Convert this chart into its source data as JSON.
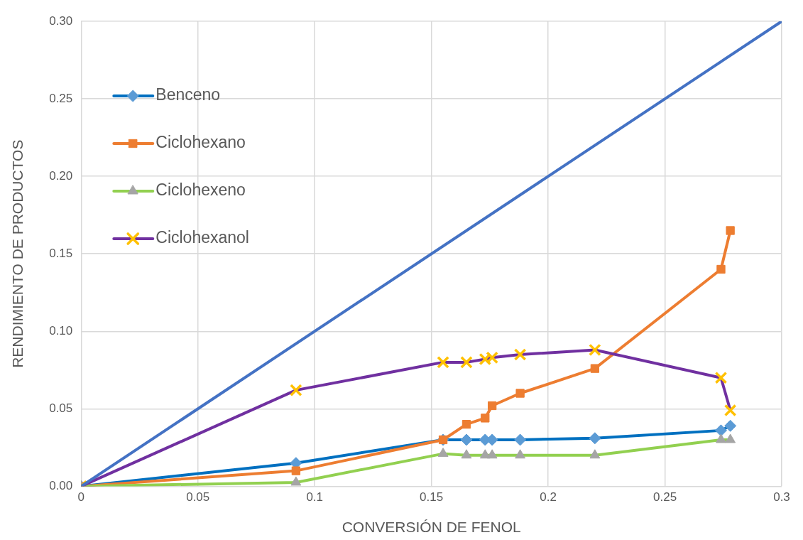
{
  "chart_data": {
    "type": "line",
    "xlabel": "CONVERSIÓN DE FENOL",
    "ylabel": "RENDIMIENTO DE PRODUCTOS",
    "xlim": [
      0,
      0.3
    ],
    "xticks": [
      0,
      0.05,
      0.1,
      0.15,
      0.2,
      0.25,
      0.3
    ],
    "ylim": [
      0,
      0.3
    ],
    "yticks": [
      {
        "value": 0,
        "label": "0.00"
      },
      {
        "value": 0.05,
        "label": "0.05"
      },
      {
        "value": 0.1,
        "label": "0.10"
      },
      {
        "value": 0.15,
        "label": "0.15"
      },
      {
        "value": 0.2,
        "label": "0.20"
      },
      {
        "value": 0.25,
        "label": "0.25"
      },
      {
        "value": 0.3,
        "label": "0.30"
      }
    ],
    "grid": true,
    "legend": "top left",
    "x": [
      0,
      0.092,
      0.155,
      0.165,
      0.173,
      0.176,
      0.188,
      0.22,
      0.274,
      0.278
    ],
    "series": [
      {
        "name": "Benceno",
        "color": "#0070c0",
        "marker": "diamond",
        "colors": [
          "#5b9bd5",
          "#5b9bd5",
          "#5b9bd5",
          "#5b9bd5",
          "#5b9bd5",
          "#5b9bd5",
          "#5b9bd5",
          "#5b9bd5",
          "#5b9bd5",
          "#5b9bd5"
        ],
        "values": [
          0,
          0.015,
          0.03,
          0.03,
          0.03,
          0.03,
          0.03,
          0.031,
          0.036,
          0.039
        ]
      },
      {
        "name": "Ciclohexano",
        "color": "#ed7d31",
        "marker": "square",
        "colors": [
          "#ed7d31",
          "#ed7d31",
          "#ed7d31",
          "#ed7d31",
          "#ed7d31",
          "#ed7d31",
          "#ed7d31",
          "#ed7d31",
          "#ed7d31",
          "#ed7d31"
        ],
        "values": [
          0,
          0.01,
          0.03,
          0.04,
          0.044,
          0.052,
          0.06,
          0.076,
          0.14,
          0.165
        ]
      },
      {
        "name": "Ciclohexeno",
        "color": "#92d050",
        "marker": "triangle",
        "colors": [
          "#a5a5a5",
          "#a5a5a5",
          "#a5a5a5",
          "#a5a5a5",
          "#a5a5a5",
          "#a5a5a5",
          "#a5a5a5",
          "#a5a5a5",
          "#a5a5a5",
          "#a5a5a5"
        ],
        "values": [
          0,
          0.0025,
          0.021,
          0.02,
          0.02,
          0.02,
          0.02,
          0.02,
          0.03,
          0.03
        ]
      },
      {
        "name": "Ciclohexanol",
        "color": "#7030a0",
        "marker": "cross",
        "colors": [
          "#ffc000",
          "#ffc000",
          "#ffc000",
          "#ffc000",
          "#ffc000",
          "#ffc000",
          "#ffc000",
          "#ffc000",
          "#ffc000",
          "#ffc000"
        ],
        "values": [
          0,
          0.062,
          0.08,
          0.08,
          0.082,
          0.083,
          0.085,
          0.088,
          0.07,
          0.049
        ]
      },
      {
        "color": "#4472c4",
        "marker": "none",
        "x": [
          0,
          0.3
        ],
        "values": [
          0,
          0.3
        ]
      }
    ]
  }
}
